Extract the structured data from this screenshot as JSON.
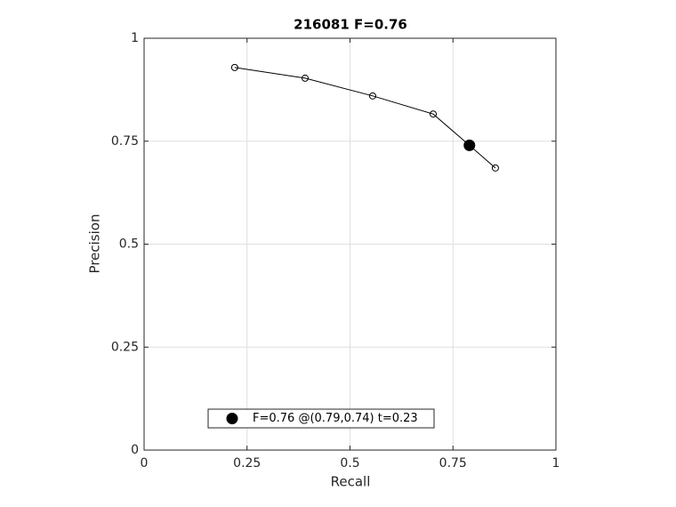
{
  "chart_data": {
    "type": "line",
    "title": "216081 F=0.76",
    "xlabel": "Recall",
    "ylabel": "Precision",
    "xlim": [
      0,
      1
    ],
    "ylim": [
      0,
      1
    ],
    "xticks": [
      0,
      0.25,
      0.5,
      0.75,
      1
    ],
    "yticks": [
      0,
      0.25,
      0.5,
      0.75,
      1
    ],
    "grid": true,
    "legend": "bottom",
    "series": [
      {
        "x": [
          0.22,
          0.391,
          0.555,
          0.702,
          0.79,
          0.853
        ],
        "values": [
          0.929,
          0.903,
          0.86,
          0.816,
          0.74,
          0.685
        ],
        "color": "#000000",
        "marker": "open-circle"
      },
      {
        "name": "F=0.76 @(0.79,0.74) t=0.23",
        "x": [
          0.79
        ],
        "values": [
          0.74
        ],
        "color": "#000000",
        "marker": "filled-circle"
      }
    ]
  }
}
